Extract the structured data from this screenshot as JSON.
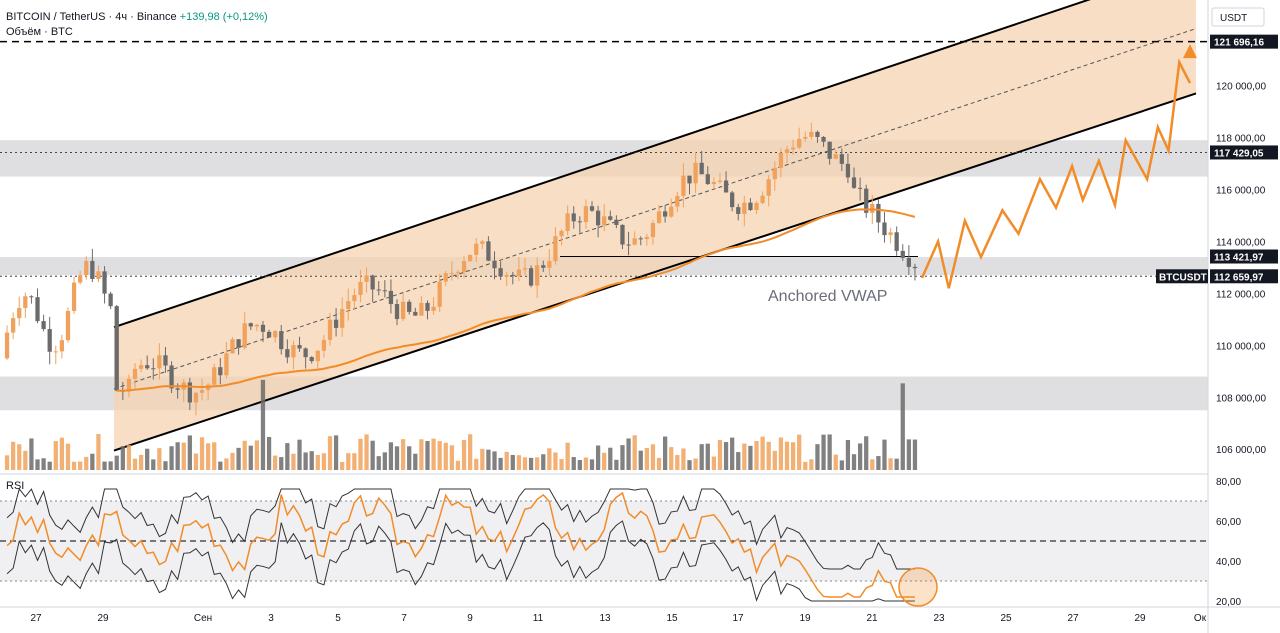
{
  "header": {
    "symbol": "BITCOIN / TetherUS · 4ч · Binance",
    "change": "+139,98 (+0,12%)",
    "volume_label": "Объём · BTC",
    "currency": "USDT",
    "rsi_label": "RSI"
  },
  "colors": {
    "up": "#f0a25c",
    "down": "#6b6b6b",
    "vwap": "#f28c28",
    "channel_fill": "#f6d3b0",
    "zone": "#d9d9dc",
    "forecast": "#f28c28",
    "rsi_line": "#f28c28"
  },
  "annotations": {
    "vwap_label": "Anchored VWAP"
  },
  "chart_data": {
    "type": "candlestick",
    "price_axis": {
      "range": [
        105200,
        123300
      ],
      "ticks": [
        "120 000,00",
        "118 000,00",
        "116 000,00",
        "114 000,00",
        "112 000,00",
        "110 000,00",
        "108 000,00",
        "106 000,00"
      ],
      "tick_values": [
        120000,
        118000,
        116000,
        114000,
        112000,
        110000,
        108000,
        106000
      ],
      "tags": [
        {
          "label": "121 696,16",
          "value": 121696.16,
          "style": "dark"
        },
        {
          "label": "117 429,05",
          "value": 117429.05,
          "style": "dark"
        },
        {
          "label": "113 421,97",
          "value": 113421.97,
          "style": "dark"
        },
        {
          "label": "112 659,97",
          "value": 112659.97,
          "style": "dark"
        }
      ],
      "symbol_tag": "BTCUSDT"
    },
    "rsi_axis": {
      "range": [
        18,
        82
      ],
      "ticks": [
        "80,00",
        "60,00",
        "40,00",
        "20,00"
      ],
      "tick_values": [
        80,
        60,
        40,
        20
      ],
      "levels": [
        70,
        50,
        30
      ]
    },
    "x_axis": {
      "ticks": [
        "27",
        "29",
        "Сен",
        "3",
        "5",
        "7",
        "9",
        "11",
        "13",
        "15",
        "17",
        "19",
        "21",
        "23",
        "25",
        "27",
        "29",
        "Ок"
      ]
    },
    "zones": [
      {
        "from": 116500,
        "to": 117900
      },
      {
        "from": 112700,
        "to": 113400
      },
      {
        "from": 107500,
        "to": 108800
      }
    ],
    "levels": [
      {
        "value": 121696.16,
        "style": "dashed"
      },
      {
        "value": 117429.05,
        "style": "dotted"
      },
      {
        "value": 113421.97,
        "style": "solid"
      },
      {
        "value": 112659.97,
        "style": "dotted"
      }
    ],
    "channel": {
      "lower_start": [
        0,
        105950
      ],
      "lower_end": [
        1,
        119700
      ],
      "upper_start": [
        0,
        110700
      ],
      "upper_end": [
        1,
        124700
      ]
    },
    "forecast_path": [
      [
        0,
        112600
      ],
      [
        0.06,
        114000
      ],
      [
        0.1,
        112200
      ],
      [
        0.16,
        114800
      ],
      [
        0.22,
        113400
      ],
      [
        0.3,
        115200
      ],
      [
        0.36,
        114300
      ],
      [
        0.44,
        116400
      ],
      [
        0.5,
        115300
      ],
      [
        0.56,
        116900
      ],
      [
        0.6,
        115600
      ],
      [
        0.66,
        117100
      ],
      [
        0.72,
        115400
      ],
      [
        0.76,
        117900
      ],
      [
        0.84,
        116400
      ],
      [
        0.88,
        118400
      ],
      [
        0.92,
        117500
      ],
      [
        0.96,
        120900
      ],
      [
        1,
        120100
      ]
    ],
    "forecast_arrow_target": 121600
  }
}
